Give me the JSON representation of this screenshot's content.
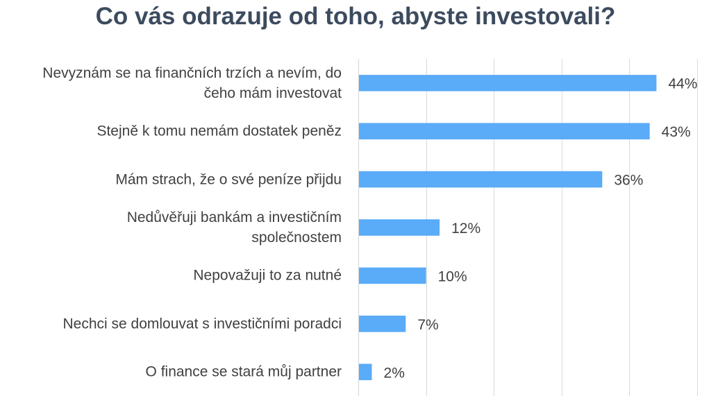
{
  "chart_data": {
    "type": "bar",
    "orientation": "horizontal",
    "title": "Co vás odrazuje od toho, abyste investovali?",
    "categories": [
      "Nevyznám se na finančních trzích a nevím, do čeho mám investovat",
      "Stejně k tomu nemám dostatek peněz",
      "Mám strach, že o své peníze přijdu",
      "Nedůvěřuji bankám a investičním společnostem",
      "Nepovažuji to za nutné",
      "Nechci se domlouvat s investičními poradci",
      "O finance se stará můj partner"
    ],
    "category_lines": [
      [
        "Nevyznám se na finančních trzích a nevím, do",
        "čeho mám investovat"
      ],
      [
        "Stejně k tomu nemám dostatek peněz"
      ],
      [
        "Mám strach, že o své peníze přijdu"
      ],
      [
        "Nedůvěřuji bankám a investičním",
        "společnostem"
      ],
      [
        "Nepovažuji to za nutné"
      ],
      [
        "Nechci se domlouvat s investičními poradci"
      ],
      [
        "O finance se stará můj partner"
      ]
    ],
    "values": [
      44,
      43,
      36,
      12,
      10,
      7,
      2
    ],
    "data_labels": [
      "44%",
      "43%",
      "36%",
      "12%",
      "10%",
      "7%",
      "2%"
    ],
    "xlim": [
      0,
      50
    ],
    "grid": true,
    "xlabel": "",
    "ylabel": "",
    "colors": {
      "bar": "#5aabf8",
      "grid": "#d9d9d9",
      "title": "#3c4b5e",
      "text": "#404040"
    }
  }
}
